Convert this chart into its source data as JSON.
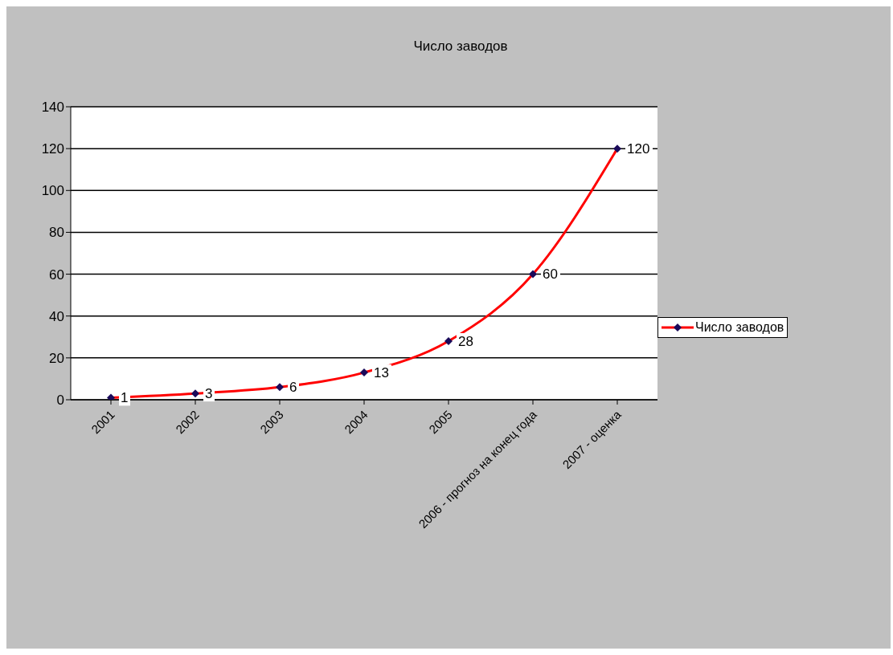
{
  "chart_data": {
    "type": "line",
    "title": "Число заводов",
    "categories": [
      "2001",
      "2002",
      "2003",
      "2004",
      "2005",
      "2006 - прогноз на конец года",
      "2007 - оценка"
    ],
    "series": [
      {
        "name": "Число заводов",
        "color": "#ff0000",
        "values": [
          1,
          3,
          6,
          13,
          28,
          60,
          120
        ]
      }
    ],
    "ylim": [
      0,
      140
    ],
    "yticks": [
      0,
      20,
      40,
      60,
      80,
      100,
      120,
      140
    ],
    "grid": "y",
    "legend": "right",
    "marker": "diamond",
    "line_style": "solid",
    "data_labels": true
  }
}
